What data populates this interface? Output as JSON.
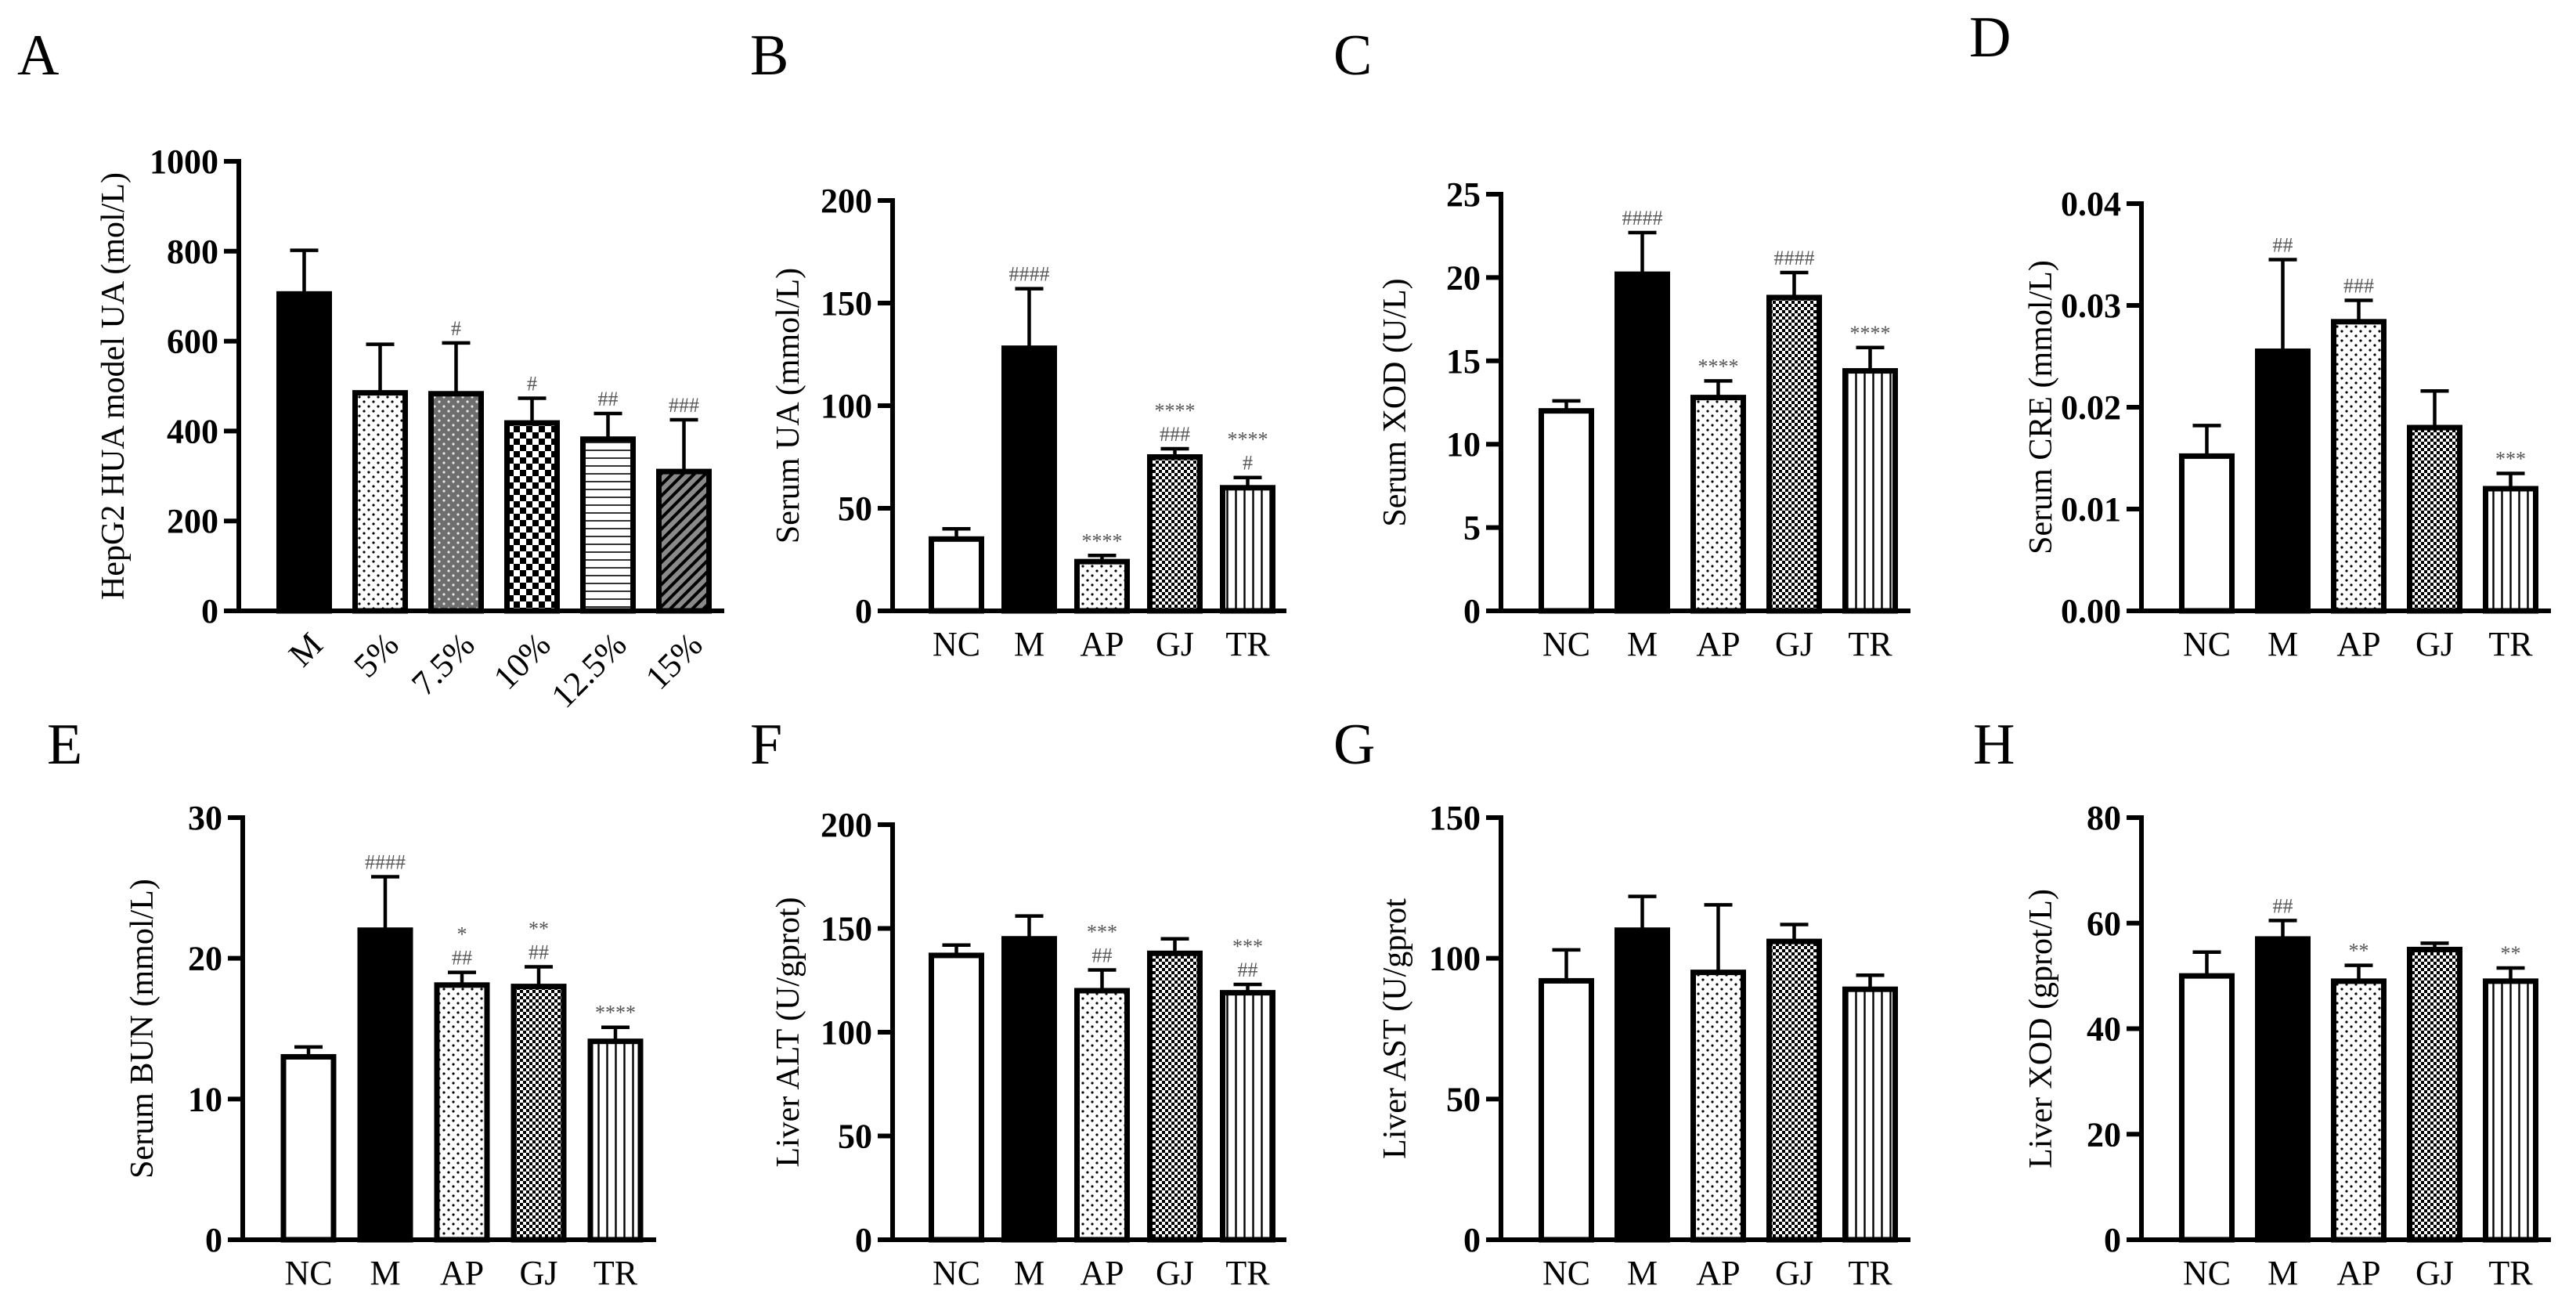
{
  "figure_type": "Multi-panel bar chart figure",
  "colors": {
    "black": "#000000",
    "white": "#ffffff",
    "annotation": "#555555"
  },
  "chart_data": [
    {
      "panel": "A",
      "type": "bar",
      "ylabel": "HepG2 HUA model UA (mol/L)",
      "ylim": [
        0,
        1000
      ],
      "yticks": [
        "0",
        "200",
        "400",
        "600",
        "800",
        "1000"
      ],
      "categories": [
        "M",
        "5%",
        "7.5%",
        "10%",
        "12.5%",
        "15%"
      ],
      "values": [
        705,
        485,
        483,
        418,
        382,
        310
      ],
      "errors": [
        97,
        108,
        113,
        55,
        57,
        115
      ],
      "patterns": [
        "solid",
        "dots",
        "dots-dark",
        "checker",
        "hlines",
        "diag"
      ],
      "annotations": [
        [],
        [],
        [
          "#"
        ],
        [
          "#"
        ],
        [
          "##"
        ],
        [
          "###"
        ]
      ],
      "rotate_labels": true
    },
    {
      "panel": "B",
      "type": "bar",
      "ylabel": "Serum UA (mmol/L)",
      "ylim": [
        0,
        200
      ],
      "yticks": [
        "0",
        "50",
        "100",
        "150",
        "200"
      ],
      "categories": [
        "NC",
        "M",
        "AP",
        "GJ",
        "TR"
      ],
      "values": [
        35,
        128,
        24,
        75,
        60
      ],
      "errors": [
        5,
        29,
        3,
        4,
        5
      ],
      "patterns": [
        "white",
        "solid",
        "dots",
        "crosshatch",
        "vlines"
      ],
      "annotations": [
        [],
        [
          "####"
        ],
        [
          "****"
        ],
        [
          "****",
          "###"
        ],
        [
          "****",
          "#"
        ]
      ]
    },
    {
      "panel": "C",
      "type": "bar",
      "ylabel": "Serum XOD (U/L)",
      "ylim": [
        0,
        25
      ],
      "yticks": [
        "0",
        "5",
        "10",
        "15",
        "20",
        "25"
      ],
      "categories": [
        "NC",
        "M",
        "AP",
        "GJ",
        "TR"
      ],
      "values": [
        12,
        20.2,
        12.8,
        18.8,
        14.4
      ],
      "errors": [
        0.6,
        2.5,
        1.0,
        1.5,
        1.4
      ],
      "patterns": [
        "white",
        "solid",
        "dots",
        "crosshatch",
        "vlines"
      ],
      "annotations": [
        [],
        [
          "####"
        ],
        [
          "****"
        ],
        [
          "####"
        ],
        [
          "****"
        ]
      ]
    },
    {
      "panel": "D",
      "type": "bar",
      "ylabel": "Serum CRE (mmol/L)",
      "ylim": [
        0,
        0.04
      ],
      "yticks": [
        "0.00",
        "0.01",
        "0.02",
        "0.03",
        "0.04"
      ],
      "categories": [
        "NC",
        "M",
        "AP",
        "GJ",
        "TR"
      ],
      "values": [
        0.0152,
        0.0255,
        0.0284,
        0.018,
        0.012
      ],
      "errors": [
        0.003,
        0.009,
        0.0021,
        0.0036,
        0.0015
      ],
      "patterns": [
        "white",
        "solid",
        "dots",
        "crosshatch",
        "vlines"
      ],
      "annotations": [
        [],
        [
          "##"
        ],
        [
          "###"
        ],
        [],
        [
          "***"
        ]
      ]
    },
    {
      "panel": "E",
      "type": "bar",
      "ylabel": "Serum BUN (mmol/L)",
      "ylim": [
        0,
        30
      ],
      "yticks": [
        "0",
        "10",
        "20",
        "30"
      ],
      "categories": [
        "NC",
        "M",
        "AP",
        "GJ",
        "TR"
      ],
      "values": [
        13,
        22,
        18.1,
        18,
        14.1
      ],
      "errors": [
        0.7,
        3.8,
        0.9,
        1.4,
        1.0
      ],
      "patterns": [
        "white",
        "solid",
        "dots",
        "crosshatch",
        "vlines"
      ],
      "annotations": [
        [],
        [
          "####"
        ],
        [
          "*",
          "##"
        ],
        [
          "**",
          "##"
        ],
        [
          "****"
        ]
      ]
    },
    {
      "panel": "F",
      "type": "bar",
      "ylabel": "Liver ALT (U/gprot)",
      "ylim": [
        0,
        200
      ],
      "yticks": [
        "0",
        "50",
        "100",
        "150",
        "200"
      ],
      "categories": [
        "NC",
        "M",
        "AP",
        "GJ",
        "TR"
      ],
      "values": [
        137,
        145,
        120,
        138,
        119
      ],
      "errors": [
        5,
        11,
        10,
        7,
        4
      ],
      "patterns": [
        "white",
        "solid",
        "dots",
        "crosshatch",
        "vlines"
      ],
      "annotations": [
        [],
        [],
        [
          "***",
          "##"
        ],
        [],
        [
          "***",
          "##"
        ]
      ]
    },
    {
      "panel": "G",
      "type": "bar",
      "ylabel": "Liver AST (U/gprot",
      "ylim": [
        0,
        150
      ],
      "yticks": [
        "0",
        "50",
        "100",
        "150"
      ],
      "categories": [
        "NC",
        "M",
        "AP",
        "GJ",
        "TR"
      ],
      "values": [
        92,
        110,
        95,
        106,
        89
      ],
      "errors": [
        11,
        12,
        24,
        6,
        5
      ],
      "patterns": [
        "white",
        "solid",
        "dots",
        "crosshatch",
        "vlines"
      ],
      "annotations": [
        [],
        [],
        [],
        [],
        []
      ]
    },
    {
      "panel": "H",
      "type": "bar",
      "ylabel": "Liver XOD (gprot/L)",
      "ylim": [
        0,
        80
      ],
      "yticks": [
        "0",
        "20",
        "40",
        "60",
        "80"
      ],
      "categories": [
        "NC",
        "M",
        "AP",
        "GJ",
        "TR"
      ],
      "values": [
        50,
        57,
        49,
        55,
        49
      ],
      "errors": [
        4.5,
        3.5,
        3,
        1.2,
        2.5
      ],
      "patterns": [
        "white",
        "solid",
        "dots",
        "crosshatch",
        "vlines"
      ],
      "annotations": [
        [],
        [
          "##"
        ],
        [
          "**"
        ],
        [],
        [
          "**"
        ]
      ]
    }
  ]
}
